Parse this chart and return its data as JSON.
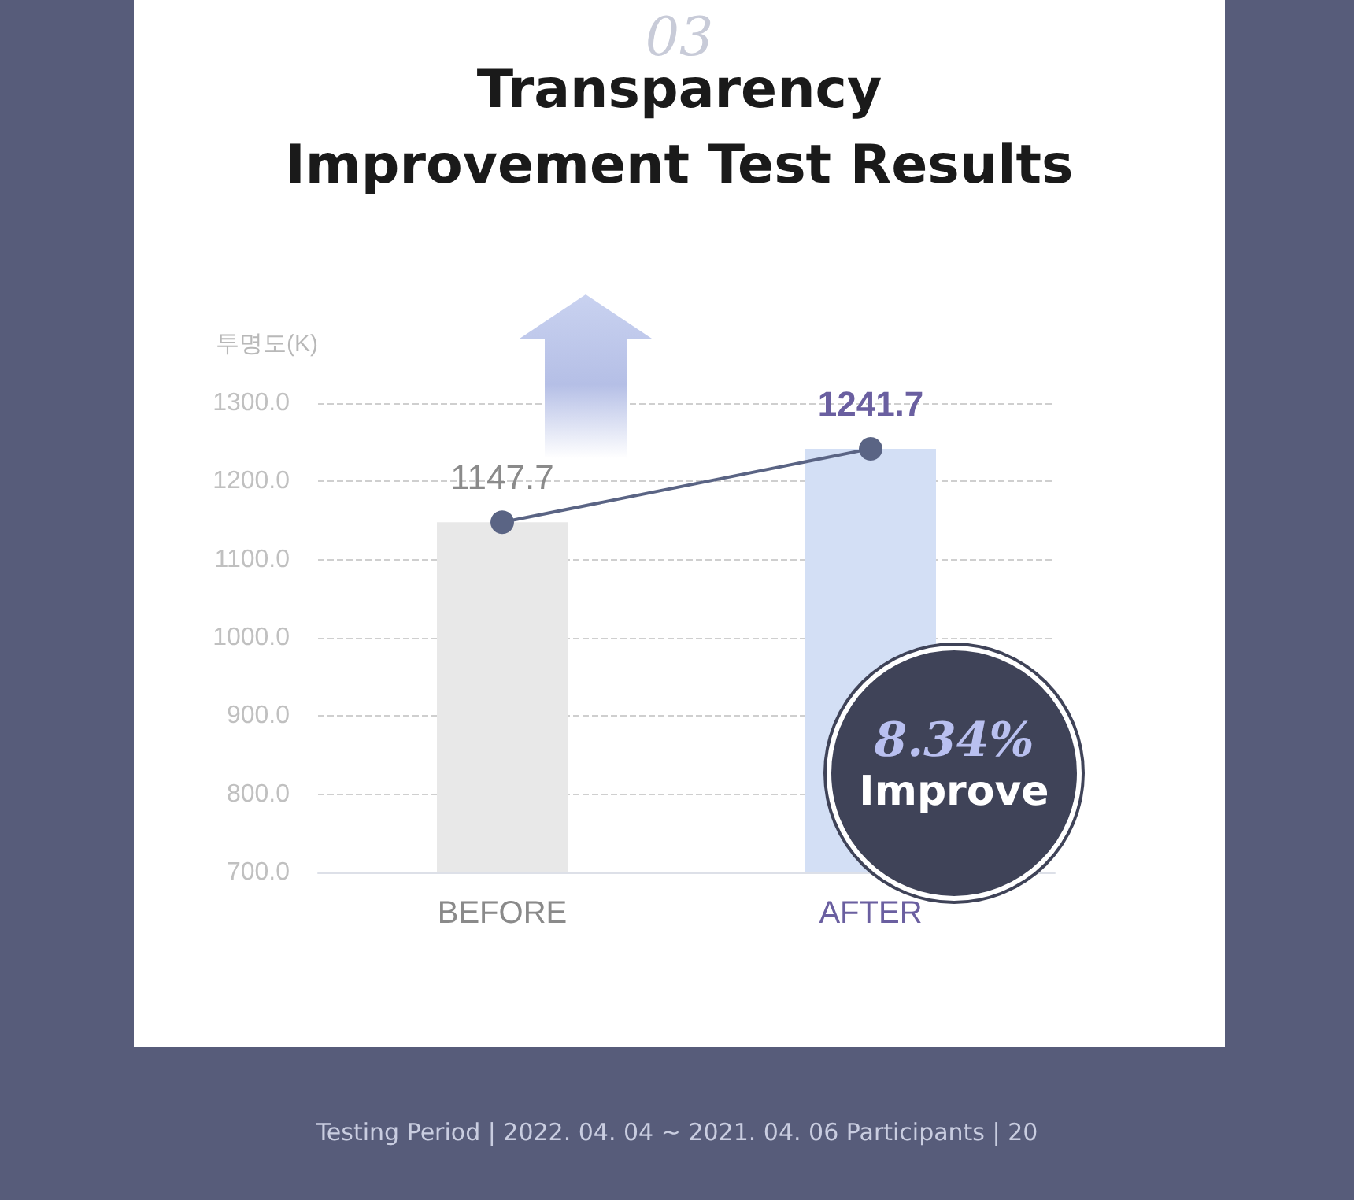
{
  "chart_data": {
    "type": "bar",
    "title": "Transparency\nImprovement Test Results",
    "ylabel": "투명도(K)",
    "categories": [
      "BEFORE",
      "AFTER"
    ],
    "series": [
      {
        "colors": [
          "#e8e8e8",
          "#d3dff5"
        ],
        "values": [
          1147.7,
          1241.7
        ]
      },
      {
        "type": "line",
        "color": "#5a6484",
        "values": [
          1147.7,
          1241.7
        ],
        "value_labels": [
          "1147.7",
          "1241.7"
        ]
      }
    ],
    "ylim": [
      700,
      1300
    ],
    "yticks": [
      {
        "value": 700,
        "label": "700.0"
      },
      {
        "value": 800,
        "label": "800.0"
      },
      {
        "value": 900,
        "label": "900.0"
      },
      {
        "value": 1000,
        "label": "1000.0"
      },
      {
        "value": 1100,
        "label": "1100.0"
      },
      {
        "value": 1200,
        "label": "1200.0"
      },
      {
        "value": 1300,
        "label": "1300.0"
      }
    ],
    "grid": "y",
    "marker": "circle",
    "line_style": "solid",
    "annotations": [
      "03",
      "8.34%",
      "Improve",
      "Testing Period | 2022. 04. 04 ~ 2021. 04. 06 Participants | 20"
    ]
  }
}
